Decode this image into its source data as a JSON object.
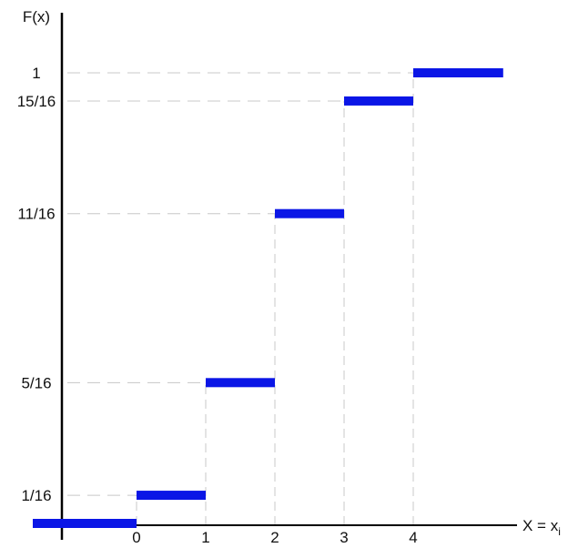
{
  "chart_data": {
    "type": "line",
    "title": "",
    "ylabel": "F(x)",
    "xlabel": "X = x",
    "xlabel_subscript": "i",
    "x_ticks": [
      {
        "value": 0,
        "label": "0"
      },
      {
        "value": 1,
        "label": "1"
      },
      {
        "value": 2,
        "label": "2"
      },
      {
        "value": 3,
        "label": "3"
      },
      {
        "value": 4,
        "label": "4"
      }
    ],
    "y_ticks": [
      {
        "value": 0.0625,
        "label": "1/16"
      },
      {
        "value": 0.3125,
        "label": "5/16"
      },
      {
        "value": 0.6875,
        "label": "11/16"
      },
      {
        "value": 0.9375,
        "label": "15/16"
      },
      {
        "value": 1,
        "label": "1"
      }
    ],
    "xlim": [
      -1.5,
      5.7
    ],
    "ylim": [
      0,
      1.1
    ],
    "step_segments": [
      {
        "x_start": -1.5,
        "x_end": 0,
        "y": 0
      },
      {
        "x_start": 0,
        "x_end": 1,
        "y": 0.0625
      },
      {
        "x_start": 1,
        "x_end": 2,
        "y": 0.3125
      },
      {
        "x_start": 2,
        "x_end": 3,
        "y": 0.6875
      },
      {
        "x_start": 3,
        "x_end": 4,
        "y": 0.9375
      },
      {
        "x_start": 4,
        "x_end": 5.3,
        "y": 1
      }
    ],
    "grid": "dashed guide lines",
    "colors": {
      "steps": "#0b16e6",
      "guides": "#c8c8c8",
      "axes": "#000000"
    }
  }
}
